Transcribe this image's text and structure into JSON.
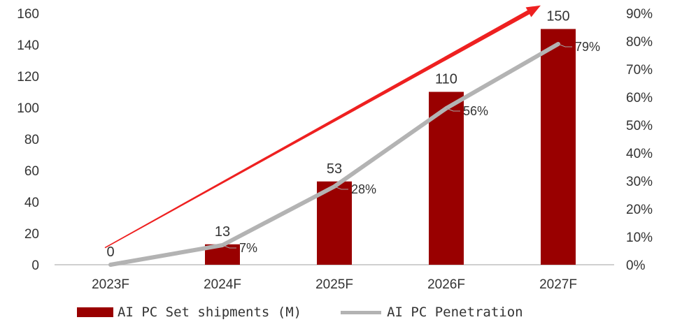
{
  "chart_data": {
    "type": "bar",
    "categories": [
      "2023F",
      "2024F",
      "2025F",
      "2026F",
      "2027F"
    ],
    "series": [
      {
        "name": "AI PC Set shipments (M)",
        "type": "bar",
        "axis": "left",
        "values": [
          0,
          13,
          53,
          110,
          150
        ],
        "labels": [
          "0",
          "13",
          "53",
          "110",
          "150"
        ]
      },
      {
        "name": "AI PC Penetration",
        "type": "line",
        "axis": "right",
        "values": [
          0,
          7,
          28,
          56,
          79
        ],
        "labels": [
          "",
          "7%",
          "28%",
          "56%",
          "79%"
        ]
      }
    ],
    "y_left": {
      "lim": [
        0,
        160
      ],
      "ticks": [
        "0",
        "20",
        "40",
        "60",
        "80",
        "100",
        "120",
        "140",
        "160"
      ]
    },
    "y_right": {
      "lim": [
        0,
        90
      ],
      "ticks": [
        "0%",
        "10%",
        "20%",
        "30%",
        "40%",
        "50%",
        "60%",
        "70%",
        "80%",
        "90%"
      ]
    },
    "trend_arrow": {
      "from_value": 10.8,
      "to_value": 165
    },
    "colors": {
      "bar": "#990000",
      "line": "#b3b3b3",
      "arrow": "#ee2020",
      "axis": "#bfbfbf",
      "text": "#333333"
    },
    "grid": false,
    "legend_position": "bottom"
  },
  "legend": {
    "bar_label": "AI PC Set shipments (M)",
    "line_label": "AI PC Penetration"
  }
}
